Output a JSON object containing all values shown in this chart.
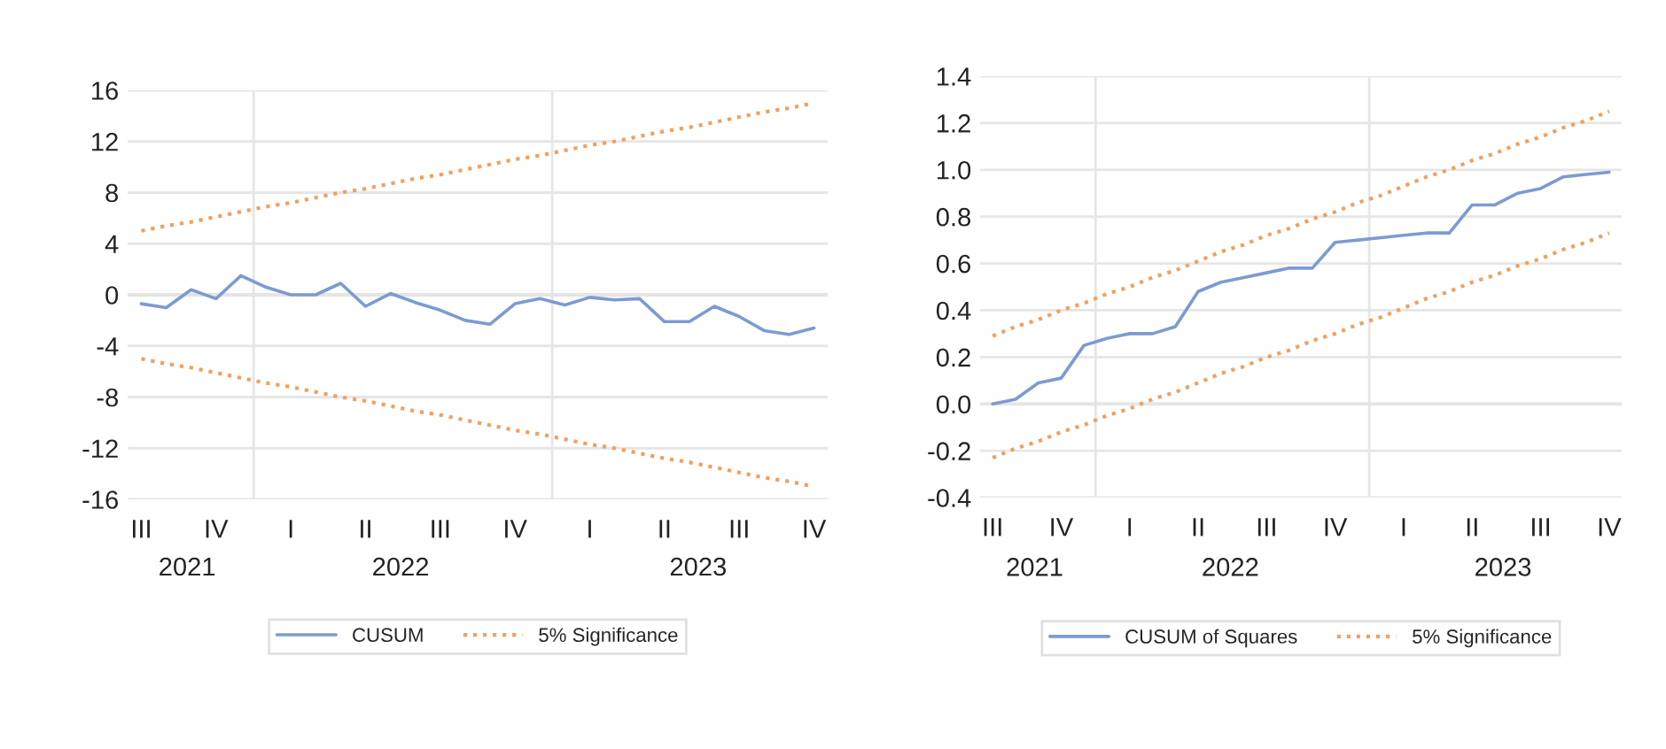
{
  "chart_data": [
    {
      "type": "line",
      "categories": [
        "III",
        null,
        null,
        "IV",
        null,
        null,
        "I",
        null,
        null,
        "II",
        null,
        null,
        "III",
        null,
        null,
        "IV",
        null,
        null,
        "I",
        null,
        null,
        "II",
        null,
        null,
        "III",
        null,
        null,
        "IV"
      ],
      "ylim": [
        -16,
        16
      ],
      "yticks": [
        -16,
        -12,
        -8,
        -4,
        0,
        4,
        8,
        12,
        16
      ],
      "grid": "y",
      "legend": "bottom",
      "line_style": "solid",
      "series": [
        {
          "name": "CUSUM",
          "color": "#7b9bd2",
          "values": [
            -0.7,
            -1.0,
            0.4,
            -0.3,
            1.5,
            0.6,
            0.0,
            0.0,
            0.9,
            -0.9,
            0.1,
            -0.6,
            -1.2,
            -2.0,
            -2.3,
            -0.7,
            -0.3,
            -0.8,
            -0.2,
            -0.4,
            -0.3,
            -2.1,
            -2.1,
            -0.9,
            -1.7,
            -2.8,
            -3.1,
            -2.6
          ]
        },
        {
          "name": "5% Significance",
          "color": "#f0a060",
          "line_style": "dotted",
          "values": [
            5.0,
            5.4,
            5.7,
            6.1,
            6.5,
            6.9,
            7.2,
            7.6,
            8.0,
            8.3,
            8.7,
            9.1,
            9.4,
            9.8,
            10.2,
            10.6,
            10.9,
            11.3,
            11.7,
            12.0,
            12.4,
            12.8,
            13.1,
            13.5,
            13.9,
            14.3,
            14.6,
            15.0
          ]
        },
        {
          "color": "#f0a060",
          "line_style": "dotted",
          "values": [
            -5.0,
            -5.4,
            -5.7,
            -6.1,
            -6.5,
            -6.9,
            -7.2,
            -7.6,
            -8.0,
            -8.3,
            -8.7,
            -9.1,
            -9.4,
            -9.8,
            -10.2,
            -10.6,
            -10.9,
            -11.3,
            -11.7,
            -12.0,
            -12.4,
            -12.8,
            -13.1,
            -13.5,
            -13.9,
            -14.3,
            -14.6,
            -15.0
          ]
        }
      ],
      "ref_lines": [
        {
          "axis": "y",
          "value": 0,
          "color": "#bfbfbf"
        }
      ],
      "annotations": [
        "2021",
        "2022",
        "2023"
      ]
    },
    {
      "type": "line",
      "categories": [
        "III",
        null,
        null,
        "IV",
        null,
        null,
        "I",
        null,
        null,
        "II",
        null,
        null,
        "III",
        null,
        null,
        "IV",
        null,
        null,
        "I",
        null,
        null,
        "II",
        null,
        null,
        "III",
        null,
        null,
        "IV"
      ],
      "ylim": [
        -0.4,
        1.4
      ],
      "yticks": [
        {
          "value": -0.4,
          "label": "-0.4"
        },
        {
          "value": -0.2,
          "label": "-0.2"
        },
        {
          "value": 0,
          "label": "0.0"
        },
        {
          "value": 0.2,
          "label": "0.2"
        },
        {
          "value": 0.4,
          "label": "0.4"
        },
        {
          "value": 0.6,
          "label": "0.6"
        },
        {
          "value": 0.8,
          "label": "0.8"
        },
        {
          "value": 1,
          "label": "1.0"
        },
        {
          "value": 1.2,
          "label": "1.2"
        },
        {
          "value": 1.4,
          "label": "1.4"
        }
      ],
      "grid": "y",
      "legend": "bottom",
      "line_style": "solid",
      "series": [
        {
          "name": "CUSUM of Squares",
          "color": "#7b9bd2",
          "values": [
            0.0,
            0.02,
            0.09,
            0.11,
            0.25,
            0.28,
            0.3,
            0.3,
            0.33,
            0.48,
            0.52,
            0.54,
            0.56,
            0.58,
            0.58,
            0.69,
            0.7,
            0.71,
            0.72,
            0.73,
            0.73,
            0.85,
            0.85,
            0.9,
            0.92,
            0.97,
            0.98,
            0.99
          ]
        },
        {
          "name": "5% Significance",
          "color": "#f0a060",
          "line_style": "dotted",
          "values": [
            0.29,
            0.33,
            0.36,
            0.4,
            0.43,
            0.47,
            0.5,
            0.54,
            0.57,
            0.61,
            0.65,
            0.68,
            0.72,
            0.75,
            0.79,
            0.82,
            0.86,
            0.89,
            0.93,
            0.97,
            1.0,
            1.04,
            1.07,
            1.11,
            1.14,
            1.18,
            1.21,
            1.25
          ]
        },
        {
          "color": "#f0a060",
          "line_style": "dotted",
          "values": [
            -0.23,
            -0.19,
            -0.16,
            -0.12,
            -0.09,
            -0.05,
            -0.02,
            0.02,
            0.05,
            0.09,
            0.13,
            0.16,
            0.2,
            0.23,
            0.27,
            0.3,
            0.34,
            0.37,
            0.41,
            0.45,
            0.48,
            0.52,
            0.55,
            0.59,
            0.62,
            0.66,
            0.69,
            0.73
          ]
        }
      ],
      "ref_lines": [
        {
          "axis": "y",
          "value": 0,
          "color": "#bfbfbf"
        }
      ],
      "annotations": [
        "2021",
        "2022",
        "2023"
      ]
    }
  ]
}
